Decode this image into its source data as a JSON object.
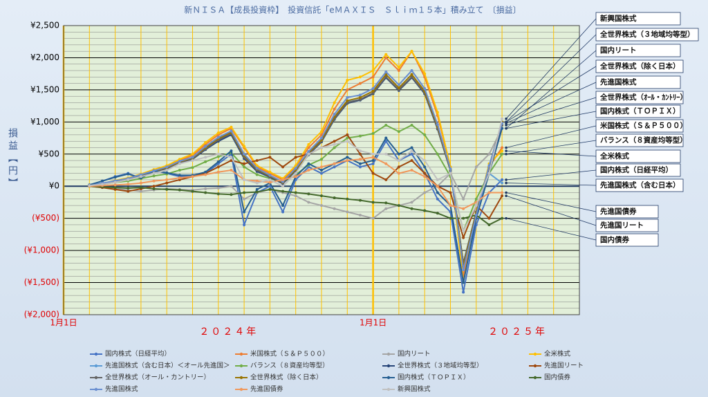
{
  "chart_data": {
    "type": "line",
    "title": "新ＮＩＳＡ【成長投資枠】　投資信託「eＭＡＸＩＳ　Ｓｌｉｍ１５本」積み立て　〔損益〕",
    "y_label": "損益【円】",
    "xlim": [
      0,
      20
    ],
    "xticks": [
      {
        "value": 0,
        "label": "1月1日"
      },
      {
        "value": 12,
        "label": "1月1日"
      }
    ],
    "minor_xstep": 1,
    "annotations": [
      {
        "text": "２０２４年",
        "x": 6.4
      },
      {
        "text": "２０２５年",
        "x": 17.6
      }
    ],
    "ylim": [
      -2000,
      2500
    ],
    "yticks": [
      {
        "value": 2500,
        "label": "¥2,500"
      },
      {
        "value": 2000,
        "label": "¥2,000"
      },
      {
        "value": 1500,
        "label": "¥1,500"
      },
      {
        "value": 1000,
        "label": "¥1,000"
      },
      {
        "value": 500,
        "label": "¥500"
      },
      {
        "value": 0,
        "label": "¥0"
      },
      {
        "value": -500,
        "label": "(¥500)"
      },
      {
        "value": -1000,
        "label": "(¥1,000)"
      },
      {
        "value": -1500,
        "label": "(¥1,500)"
      },
      {
        "value": -2000,
        "label": "(¥2,000)"
      }
    ],
    "minor_ystep": 100,
    "grid": true,
    "legend": "bottom",
    "x": [
      1,
      1.5,
      2,
      2.5,
      3,
      3.5,
      4,
      4.5,
      5,
      5.5,
      6,
      6.5,
      7,
      7.5,
      8,
      8.5,
      9,
      9.5,
      10,
      10.5,
      11,
      11.5,
      12,
      12.5,
      13,
      13.5,
      14,
      14.5,
      15,
      15.5,
      16,
      16.5,
      17
    ],
    "series": [
      {
        "name": "国内株式（日経平均）",
        "color": "#4472c4",
        "values": [
          20,
          80,
          150,
          200,
          120,
          250,
          200,
          150,
          150,
          200,
          350,
          500,
          -600,
          -100,
          0,
          -400,
          100,
          300,
          200,
          300,
          400,
          300,
          350,
          700,
          400,
          500,
          200,
          -200,
          -400,
          -1650,
          -600,
          -100,
          100
        ]
      },
      {
        "name": "米国株式（Ｓ＆Ｐ５００）",
        "color": "#ed7d31",
        "values": [
          10,
          40,
          80,
          120,
          180,
          250,
          300,
          400,
          480,
          650,
          800,
          900,
          600,
          300,
          200,
          100,
          300,
          600,
          800,
          1200,
          1500,
          1600,
          1700,
          2000,
          1800,
          2100,
          1700,
          1100,
          300,
          -1400,
          -500,
          300,
          600
        ]
      },
      {
        "name": "国内リート",
        "color": "#a5a5a5",
        "values": [
          0,
          -20,
          -40,
          -60,
          -80,
          -60,
          -40,
          -50,
          -60,
          -40,
          -30,
          0,
          -200,
          -100,
          -50,
          -100,
          -150,
          -250,
          -300,
          -350,
          -400,
          -450,
          -500,
          -350,
          -300,
          -250,
          -100,
          0,
          200,
          -200,
          300,
          500,
          900
        ]
      },
      {
        "name": "全米株式",
        "color": "#ffc000",
        "values": [
          10,
          40,
          90,
          130,
          190,
          260,
          320,
          420,
          500,
          680,
          830,
          920,
          620,
          320,
          220,
          120,
          320,
          650,
          850,
          1300,
          1650,
          1700,
          1800,
          2050,
          1850,
          2100,
          1750,
          1150,
          300,
          -1500,
          -450,
          350,
          550
        ]
      },
      {
        "name": "先進国株式（含む日本）＜オール先進国＞",
        "color": "#5b9bd5",
        "values": [
          10,
          45,
          80,
          115,
          175,
          230,
          290,
          370,
          430,
          590,
          720,
          820,
          470,
          260,
          160,
          60,
          260,
          510,
          710,
          1060,
          1310,
          1350,
          1440,
          1690,
          1500,
          1700,
          1440,
          900,
          250,
          -1200,
          -450,
          200,
          50
        ]
      },
      {
        "name": "バランス（８資産均等型）",
        "color": "#70ad47",
        "values": [
          10,
          30,
          60,
          80,
          120,
          160,
          190,
          250,
          290,
          380,
          460,
          520,
          300,
          180,
          120,
          60,
          180,
          330,
          420,
          600,
          750,
          780,
          820,
          950,
          850,
          950,
          800,
          500,
          150,
          -700,
          -200,
          200,
          500
        ]
      },
      {
        "name": "全世界株式（３地域均等型）",
        "color": "#264478",
        "values": [
          10,
          40,
          80,
          110,
          165,
          225,
          275,
          360,
          420,
          570,
          700,
          800,
          430,
          230,
          140,
          40,
          240,
          490,
          690,
          1040,
          1290,
          1340,
          1440,
          1690,
          1490,
          1690,
          1440,
          890,
          240,
          -1210,
          -410,
          290,
          1000
        ]
      },
      {
        "name": "先進国リート",
        "color": "#9e480e",
        "values": [
          0,
          -20,
          -50,
          -80,
          -40,
          0,
          50,
          100,
          150,
          200,
          300,
          400,
          350,
          400,
          450,
          300,
          450,
          500,
          600,
          700,
          800,
          500,
          200,
          100,
          300,
          400,
          200,
          0,
          -100,
          -800,
          -300,
          -500,
          -150
        ]
      },
      {
        "name": "全世界株式（オール・カントリー）",
        "color": "#636363",
        "values": [
          10,
          40,
          80,
          110,
          170,
          230,
          280,
          370,
          430,
          580,
          720,
          820,
          450,
          250,
          150,
          50,
          250,
          500,
          700,
          1050,
          1300,
          1350,
          1450,
          1700,
          1500,
          1700,
          1450,
          900,
          250,
          -1200,
          -400,
          300,
          950
        ]
      },
      {
        "name": "全世界株式（除く日本）",
        "color": "#997300",
        "values": [
          10,
          40,
          85,
          115,
          175,
          235,
          290,
          380,
          440,
          600,
          740,
          840,
          480,
          270,
          160,
          60,
          260,
          520,
          720,
          1080,
          1330,
          1380,
          1480,
          1740,
          1530,
          1740,
          1480,
          930,
          260,
          -1250,
          -420,
          310,
          1000
        ]
      },
      {
        "name": "国内株式（ＴＯＰＩＸ）",
        "color": "#255e91",
        "values": [
          20,
          80,
          140,
          190,
          130,
          240,
          210,
          170,
          170,
          220,
          380,
          550,
          -400,
          -50,
          50,
          -300,
          150,
          350,
          250,
          350,
          450,
          350,
          400,
          750,
          500,
          600,
          300,
          -100,
          -300,
          -1500,
          -500,
          200,
          900
        ]
      },
      {
        "name": "国内債券",
        "color": "#43682b",
        "values": [
          0,
          -10,
          -20,
          -30,
          -20,
          -40,
          -50,
          -60,
          -80,
          -100,
          -120,
          -130,
          -100,
          -90,
          -50,
          -80,
          -100,
          -120,
          -150,
          -180,
          -200,
          -220,
          -250,
          -260,
          -300,
          -350,
          -380,
          -420,
          -500,
          -500,
          -450,
          -600,
          -500
        ]
      },
      {
        "name": "先進国株式",
        "color": "#698ed0",
        "values": [
          10,
          45,
          85,
          120,
          180,
          240,
          300,
          390,
          450,
          620,
          760,
          860,
          500,
          280,
          170,
          70,
          280,
          540,
          750,
          1120,
          1380,
          1420,
          1520,
          1780,
          1580,
          1800,
          1520,
          960,
          270,
          -1300,
          -450,
          320,
          980
        ]
      },
      {
        "name": "先進国債券",
        "color": "#f1975a",
        "values": [
          0,
          10,
          20,
          30,
          50,
          80,
          100,
          130,
          150,
          180,
          220,
          250,
          100,
          80,
          60,
          100,
          150,
          250,
          300,
          350,
          400,
          420,
          450,
          350,
          200,
          250,
          150,
          0,
          -300,
          -350,
          -250,
          -100,
          -100
        ]
      },
      {
        "name": "新興国株式",
        "color": "#c0c0c0",
        "values": [
          10,
          30,
          60,
          100,
          150,
          200,
          250,
          350,
          400,
          450,
          500,
          450,
          100,
          50,
          100,
          0,
          200,
          500,
          600,
          650,
          700,
          550,
          500,
          500,
          400,
          550,
          400,
          100,
          200,
          -700,
          -300,
          200,
          1050
        ]
      }
    ],
    "callouts": [
      "新興国株式",
      "全世界株式（３地域均等型）",
      "国内リート",
      "全世界株式（除く日本）",
      "先進国株式",
      "全世界株式（ｵｰﾙ・ｶﾝﾄﾘｰ）",
      "国内株式（ＴＯＰＩＸ）",
      "米国株式（Ｓ＆Ｐ５００）",
      "バランス（８資産均等型）",
      "全米株式",
      "国内株式（日経平均）",
      "先進国株式（含む日本）",
      "先進国債券",
      "先進国リート",
      "国内債券"
    ]
  }
}
